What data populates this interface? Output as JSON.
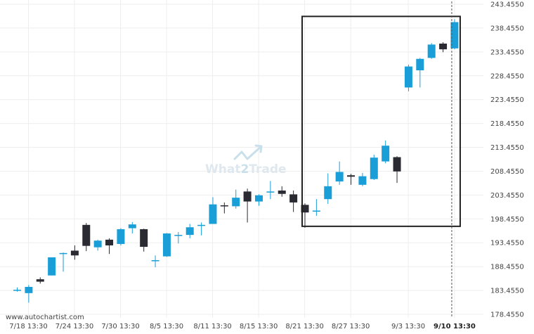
{
  "chart_data": {
    "type": "candlestick",
    "title": "",
    "xlabel": "",
    "ylabel": "",
    "ylim": [
      178.455,
      243.455
    ],
    "y_ticks": [
      "243.4550",
      "238.4550",
      "233.4550",
      "228.4550",
      "223.4550",
      "218.4550",
      "213.4550",
      "208.4550",
      "203.4550",
      "198.4550",
      "193.4550",
      "188.4550",
      "183.4550",
      "178.4550"
    ],
    "x_ticks": [
      "7/18 13:30",
      "7/24 13:30",
      "7/30 13:30",
      "8/5 13:30",
      "8/11 13:30",
      "8/15 13:30",
      "8/21 13:30",
      "8/27 13:30",
      "9/3 13:30",
      "9/10 13:30"
    ],
    "x_tick_bold": "9/10 13:30",
    "grid": true,
    "colors": {
      "up": "#1a9ed8",
      "down": "#2a2a33",
      "box": "#222222",
      "grid": "#eeeeee",
      "current": "#555555"
    },
    "candles": [
      {
        "o": 183.6,
        "h": 184.1,
        "l": 183.2,
        "c": 183.6
      },
      {
        "o": 182.9,
        "h": 184.6,
        "l": 180.9,
        "c": 184.2
      },
      {
        "o": 185.8,
        "h": 186.2,
        "l": 184.9,
        "c": 185.3
      },
      {
        "o": 186.6,
        "h": 190.4,
        "l": 186.6,
        "c": 190.4
      },
      {
        "o": 191.3,
        "h": 191.4,
        "l": 187.4,
        "c": 191.3
      },
      {
        "o": 191.8,
        "h": 192.9,
        "l": 189.9,
        "c": 190.8
      },
      {
        "o": 197.2,
        "h": 197.6,
        "l": 191.7,
        "c": 192.8
      },
      {
        "o": 192.5,
        "h": 194.1,
        "l": 191.8,
        "c": 193.9
      },
      {
        "o": 194.1,
        "h": 194.4,
        "l": 191.1,
        "c": 192.9
      },
      {
        "o": 193.2,
        "h": 196.5,
        "l": 192.9,
        "c": 196.3
      },
      {
        "o": 196.5,
        "h": 197.8,
        "l": 195.4,
        "c": 197.3
      },
      {
        "o": 196.3,
        "h": 196.4,
        "l": 191.6,
        "c": 192.6
      },
      {
        "o": 189.8,
        "h": 190.8,
        "l": 188.3,
        "c": 189.8
      },
      {
        "o": 190.6,
        "h": 195.5,
        "l": 190.5,
        "c": 195.4
      },
      {
        "o": 195.1,
        "h": 195.7,
        "l": 193.3,
        "c": 195.1
      },
      {
        "o": 195.1,
        "h": 197.4,
        "l": 194.4,
        "c": 196.7
      },
      {
        "o": 197.1,
        "h": 197.7,
        "l": 195.0,
        "c": 197.2
      },
      {
        "o": 197.4,
        "h": 203.0,
        "l": 197.4,
        "c": 201.5
      },
      {
        "o": 201.3,
        "h": 201.9,
        "l": 199.6,
        "c": 201.2
      },
      {
        "o": 201.1,
        "h": 204.6,
        "l": 200.6,
        "c": 202.9
      },
      {
        "o": 204.2,
        "h": 204.8,
        "l": 197.7,
        "c": 202.1
      },
      {
        "o": 202.1,
        "h": 203.6,
        "l": 201.2,
        "c": 203.4
      },
      {
        "o": 204.2,
        "h": 206.4,
        "l": 202.6,
        "c": 204.2
      },
      {
        "o": 204.4,
        "h": 205.3,
        "l": 203.1,
        "c": 203.7
      },
      {
        "o": 203.6,
        "h": 204.4,
        "l": 199.9,
        "c": 201.9
      },
      {
        "o": 201.4,
        "h": 201.7,
        "l": 196.6,
        "c": 199.8
      },
      {
        "o": 200.2,
        "h": 202.6,
        "l": 199.1,
        "c": 200.2
      },
      {
        "o": 202.6,
        "h": 208.0,
        "l": 201.6,
        "c": 205.3
      },
      {
        "o": 206.3,
        "h": 210.5,
        "l": 205.6,
        "c": 208.3
      },
      {
        "o": 207.6,
        "h": 207.9,
        "l": 205.6,
        "c": 207.3
      },
      {
        "o": 205.6,
        "h": 208.1,
        "l": 205.3,
        "c": 207.4
      },
      {
        "o": 206.8,
        "h": 211.9,
        "l": 206.6,
        "c": 211.3
      },
      {
        "o": 210.5,
        "h": 214.9,
        "l": 210.1,
        "c": 213.8
      },
      {
        "o": 211.4,
        "h": 211.6,
        "l": 206.0,
        "c": 208.4
      },
      {
        "o": 226.0,
        "h": 230.8,
        "l": 225.2,
        "c": 230.4
      },
      {
        "o": 229.6,
        "h": 232.2,
        "l": 226.0,
        "c": 232.0
      },
      {
        "o": 232.2,
        "h": 235.3,
        "l": 232.0,
        "c": 235.0
      },
      {
        "o": 235.2,
        "h": 235.5,
        "l": 233.4,
        "c": 234.0
      },
      {
        "o": 234.2,
        "h": 240.3,
        "l": 234.0,
        "c": 239.7
      }
    ],
    "annotations": {
      "pattern_box": {
        "start_index": 25,
        "end_index": 38,
        "y_low": 196.9,
        "y_high": 240.9
      },
      "current_marker_index": 38
    },
    "watermark": "What2Trade",
    "source_credit": "www.autochartist.com"
  }
}
